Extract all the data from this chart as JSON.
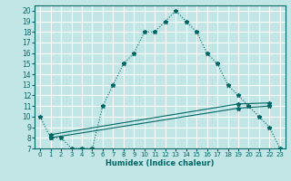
{
  "xlabel": "Humidex (Indice chaleur)",
  "ylabel": "",
  "bg_color": "#c2e5e5",
  "grid_color": "#ffffff",
  "line_color": "#006666",
  "xlim": [
    -0.5,
    23.5
  ],
  "ylim": [
    7,
    20.5
  ],
  "yticks": [
    7,
    8,
    9,
    10,
    11,
    12,
    13,
    14,
    15,
    16,
    17,
    18,
    19,
    20
  ],
  "xticks": [
    0,
    1,
    2,
    3,
    4,
    5,
    6,
    7,
    8,
    9,
    10,
    11,
    12,
    13,
    14,
    15,
    16,
    17,
    18,
    19,
    20,
    21,
    22,
    23
  ],
  "curve1_x": [
    0,
    1,
    2,
    3,
    4,
    5,
    6,
    7,
    8,
    9,
    10,
    11,
    12,
    13,
    14,
    15,
    16,
    17,
    18,
    19,
    20,
    21,
    22,
    23
  ],
  "curve1_y": [
    10,
    8,
    8,
    7,
    7,
    7,
    11,
    13,
    15,
    16,
    18,
    18,
    19,
    20,
    19,
    18,
    16,
    15,
    13,
    12,
    11,
    10,
    9,
    7
  ],
  "line2_x": [
    1,
    19,
    22
  ],
  "line2_y": [
    8.3,
    11.2,
    11.3
  ],
  "line3_x": [
    1,
    19,
    22
  ],
  "line3_y": [
    8.0,
    10.8,
    11.0
  ]
}
